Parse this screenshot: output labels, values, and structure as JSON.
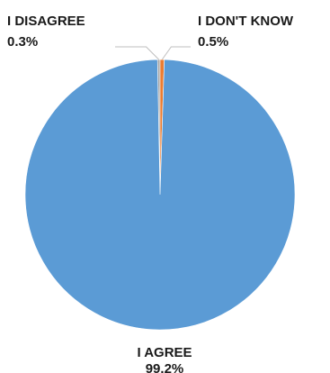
{
  "chart_data": {
    "type": "pie",
    "slices": [
      {
        "label": "I DISAGREE",
        "value": 0.3,
        "value_label": "0.3%",
        "color": "#a5a5a5"
      },
      {
        "label": "I DON'T KNOW",
        "value": 0.5,
        "value_label": "0.5%",
        "color": "#ed7d31"
      },
      {
        "label": "I AGREE",
        "value": 99.2,
        "value_label": "99.2%",
        "color": "#5b9bd5"
      }
    ],
    "unit": "%",
    "legend": "none",
    "slice_label_position": "outside with leader lines"
  }
}
